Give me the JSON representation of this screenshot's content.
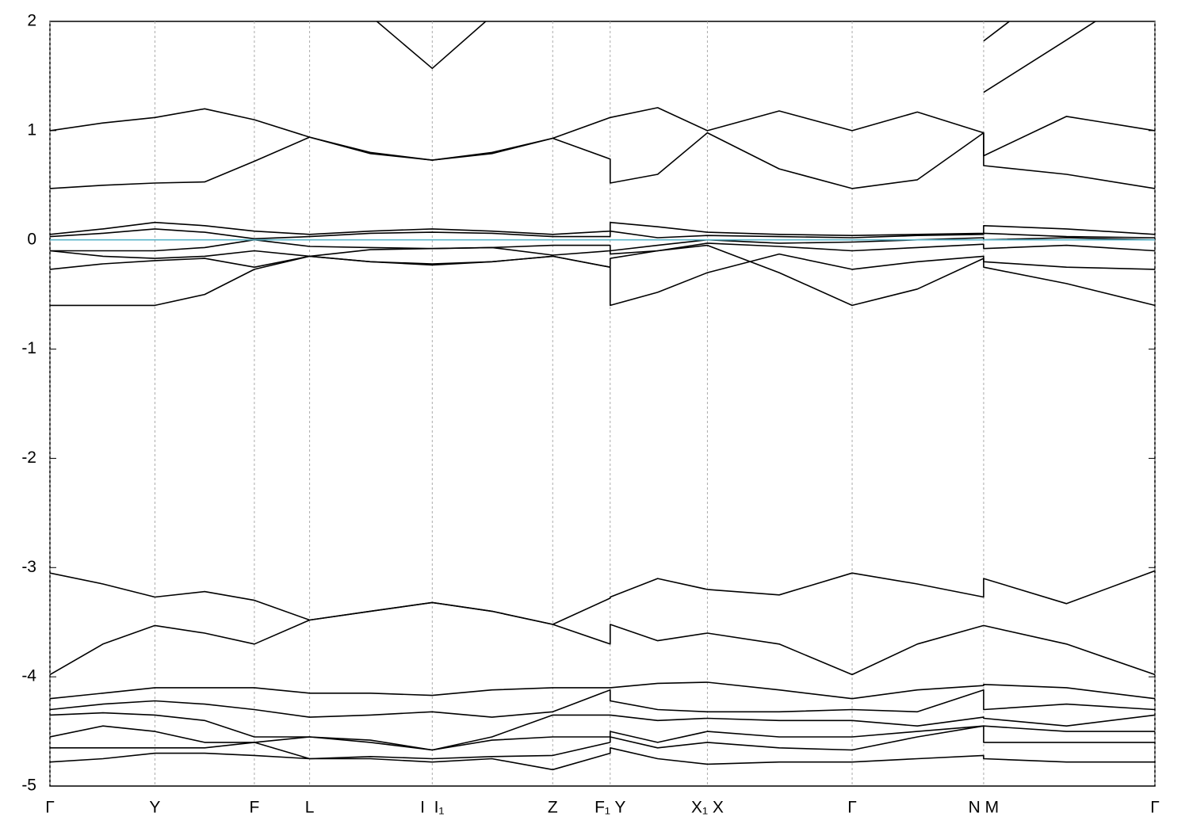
{
  "chart_data": {
    "type": "line",
    "x": [
      0,
      0.048,
      0.095,
      0.14,
      0.185,
      0.235,
      0.29,
      0.346,
      0.4,
      0.455,
      0.507,
      0.507,
      0.55,
      0.595,
      0.66,
      0.726,
      0.785,
      0.845,
      0.845,
      0.92,
      1.0
    ],
    "xlim": [
      0,
      1
    ],
    "xticks": [
      {
        "value": 0,
        "label": "Γ"
      },
      {
        "value": 0.095,
        "label": "Y"
      },
      {
        "value": 0.185,
        "label": "F"
      },
      {
        "value": 0.235,
        "label": "L"
      },
      {
        "value": 0.346,
        "label": "I  I₁"
      },
      {
        "value": 0.455,
        "label": "Z"
      },
      {
        "value": 0.507,
        "label": "F₁ Y"
      },
      {
        "value": 0.595,
        "label": "X₁ X"
      },
      {
        "value": 0.726,
        "label": "Γ"
      },
      {
        "value": 0.845,
        "label": "N M"
      },
      {
        "value": 1,
        "label": "Γ"
      }
    ],
    "ylim": [
      -5,
      2
    ],
    "yticks": [
      -5,
      -4,
      -3,
      -2,
      -1,
      0,
      1,
      2
    ],
    "grid": "x",
    "reference_line": {
      "y": 0,
      "color": "#5ab4c8"
    },
    "series": [
      {
        "color": "#000000",
        "values": [
          null,
          null,
          null,
          null,
          null,
          null,
          null,
          null,
          null,
          null,
          null,
          null,
          null,
          null,
          null,
          null,
          null,
          null,
          1.82,
          2.4,
          null
        ]
      },
      {
        "color": "#000000",
        "values": [
          null,
          null,
          null,
          null,
          null,
          null,
          2.05,
          1.57,
          2.05,
          null,
          null,
          null,
          null,
          null,
          null,
          null,
          null,
          null,
          1.35,
          1.83,
          2.35
        ]
      },
      {
        "color": "#000000",
        "values": [
          1.0,
          1.07,
          1.12,
          1.2,
          1.1,
          0.94,
          0.8,
          0.73,
          0.8,
          0.93,
          1.12,
          1.12,
          1.21,
          1.0,
          1.18,
          1.0,
          1.17,
          0.98,
          0.77,
          1.13,
          1.0
        ]
      },
      {
        "color": "#000000",
        "values": [
          0.47,
          0.5,
          0.52,
          0.53,
          0.72,
          0.94,
          0.79,
          0.73,
          0.79,
          0.93,
          0.74,
          0.52,
          0.6,
          0.98,
          0.65,
          0.47,
          0.55,
          0.98,
          0.68,
          0.6,
          0.47
        ]
      },
      {
        "color": "#000000",
        "values": [
          0.05,
          0.1,
          0.16,
          0.13,
          0.08,
          0.05,
          0.08,
          0.1,
          0.08,
          0.05,
          0.08,
          0.16,
          0.12,
          0.07,
          0.05,
          0.04,
          0.05,
          0.06,
          0.13,
          0.1,
          0.05
        ]
      },
      {
        "color": "#000000",
        "values": [
          0.03,
          0.06,
          0.1,
          0.07,
          0.01,
          0.03,
          0.06,
          0.07,
          0.06,
          0.03,
          0.03,
          0.08,
          0.02,
          0.04,
          0.03,
          0.02,
          0.04,
          0.05,
          0.06,
          0.03,
          0.02
        ]
      },
      {
        "color": "#000000",
        "values": [
          -0.1,
          -0.1,
          -0.1,
          -0.07,
          0.0,
          -0.06,
          -0.07,
          -0.08,
          -0.07,
          -0.05,
          -0.05,
          -0.1,
          -0.05,
          0.0,
          -0.03,
          -0.02,
          0.0,
          0.02,
          0.0,
          0.02,
          0.0
        ]
      },
      {
        "color": "#000000",
        "values": [
          -0.1,
          -0.15,
          -0.17,
          -0.15,
          -0.1,
          -0.15,
          -0.09,
          -0.08,
          -0.07,
          -0.14,
          -0.1,
          -0.13,
          -0.1,
          -0.03,
          -0.06,
          -0.1,
          -0.07,
          -0.04,
          -0.08,
          -0.05,
          -0.1
        ]
      },
      {
        "color": "#000000",
        "values": [
          -0.27,
          -0.22,
          -0.19,
          -0.17,
          -0.25,
          -0.15,
          -0.2,
          -0.22,
          -0.2,
          -0.15,
          -0.25,
          -0.17,
          -0.1,
          -0.05,
          -0.3,
          -0.6,
          -0.45,
          -0.17,
          -0.25,
          -0.4,
          -0.6
        ]
      },
      {
        "color": "#000000",
        "values": [
          -0.6,
          -0.6,
          -0.6,
          -0.5,
          -0.27,
          -0.15,
          -0.2,
          -0.23,
          -0.2,
          -0.15,
          -0.25,
          -0.6,
          -0.48,
          -0.3,
          -0.13,
          -0.27,
          -0.2,
          -0.15,
          -0.2,
          -0.25,
          -0.27
        ]
      },
      {
        "color": "#000000",
        "values": [
          -3.05,
          -3.15,
          -3.27,
          -3.22,
          -3.3,
          -3.48,
          -3.4,
          -3.32,
          -3.4,
          -3.52,
          -3.28,
          -3.27,
          -3.1,
          -3.2,
          -3.25,
          -3.05,
          -3.15,
          -3.27,
          -3.1,
          -3.33,
          -3.03
        ]
      },
      {
        "color": "#000000",
        "values": [
          -3.98,
          -3.7,
          -3.53,
          -3.6,
          -3.7,
          -3.48,
          -3.4,
          -3.32,
          -3.4,
          -3.52,
          -3.7,
          -3.52,
          -3.67,
          -3.6,
          -3.7,
          -3.98,
          -3.7,
          -3.53,
          -3.53,
          -3.7,
          -3.98
        ]
      },
      {
        "color": "#000000",
        "values": [
          -4.2,
          -4.15,
          -4.1,
          -4.1,
          -4.1,
          -4.15,
          -4.15,
          -4.17,
          -4.12,
          -4.1,
          -4.1,
          -4.1,
          -4.06,
          -4.05,
          -4.12,
          -4.2,
          -4.12,
          -4.08,
          -4.07,
          -4.1,
          -4.2
        ]
      },
      {
        "color": "#000000",
        "values": [
          -4.3,
          -4.25,
          -4.22,
          -4.25,
          -4.3,
          -4.37,
          -4.35,
          -4.32,
          -4.37,
          -4.32,
          -4.12,
          -4.22,
          -4.3,
          -4.32,
          -4.32,
          -4.3,
          -4.32,
          -4.12,
          -4.3,
          -4.25,
          -4.3
        ]
      },
      {
        "color": "#000000",
        "values": [
          -4.35,
          -4.33,
          -4.35,
          -4.4,
          -4.55,
          -4.55,
          -4.6,
          -4.67,
          -4.55,
          -4.35,
          -4.35,
          -4.35,
          -4.4,
          -4.38,
          -4.4,
          -4.4,
          -4.45,
          -4.37,
          -4.38,
          -4.45,
          -4.35
        ]
      },
      {
        "color": "#000000",
        "values": [
          -4.55,
          -4.45,
          -4.5,
          -4.6,
          -4.6,
          -4.55,
          -4.58,
          -4.67,
          -4.58,
          -4.55,
          -4.55,
          -4.5,
          -4.6,
          -4.5,
          -4.55,
          -4.55,
          -4.5,
          -4.45,
          -4.45,
          -4.5,
          -4.5
        ]
      },
      {
        "color": "#000000",
        "values": [
          -4.65,
          -4.65,
          -4.65,
          -4.65,
          -4.6,
          -4.75,
          -4.73,
          -4.75,
          -4.73,
          -4.72,
          -4.6,
          -4.55,
          -4.65,
          -4.6,
          -4.65,
          -4.67,
          -4.55,
          -4.45,
          -4.6,
          -4.6,
          -4.6
        ]
      },
      {
        "color": "#000000",
        "values": [
          -4.78,
          -4.75,
          -4.7,
          -4.7,
          -4.72,
          -4.75,
          -4.75,
          -4.78,
          -4.75,
          -4.85,
          -4.7,
          -4.65,
          -4.75,
          -4.8,
          -4.78,
          -4.78,
          -4.75,
          -4.72,
          -4.75,
          -4.78,
          -4.78
        ]
      }
    ]
  }
}
